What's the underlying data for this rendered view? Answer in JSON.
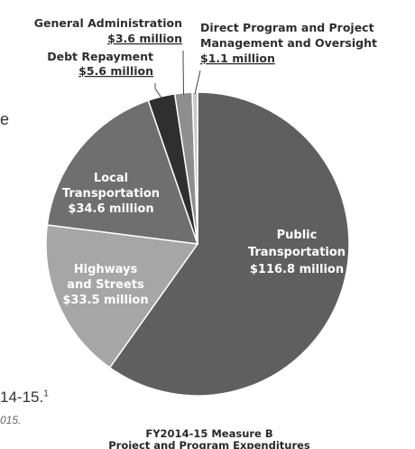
{
  "chart_data": {
    "type": "pie",
    "title": "FY2014-15 Measure B",
    "subtitle": "Project and Program Expenditures",
    "slices": [
      {
        "label": "Public Transportation",
        "value_text": "$116.8 million",
        "value": 116.8,
        "color": "#5f5f5f"
      },
      {
        "label": "Highways and Streets",
        "value_text": "$33.5 million",
        "value": 33.5,
        "color": "#a6a6a6"
      },
      {
        "label": "Local Transportation",
        "value_text": "$34.6 million",
        "value": 34.6,
        "color": "#6f6f6f"
      },
      {
        "label": "Debt Repayment",
        "value_text": "$5.6 million",
        "value": 5.6,
        "color": "#2f2f2f"
      },
      {
        "label": "General Administration",
        "value_text": "$3.6 million",
        "value": 3.6,
        "color": "#8e8e8e"
      },
      {
        "label": "Direct Program and Project Management and Oversight",
        "value_text": "$1.1 million",
        "value": 1.1,
        "color": "#c8c8c8"
      }
    ]
  },
  "fragments": {
    "left_e": "e",
    "footnote": "14-15.",
    "footnote_sup": "1",
    "year_text": "015."
  }
}
